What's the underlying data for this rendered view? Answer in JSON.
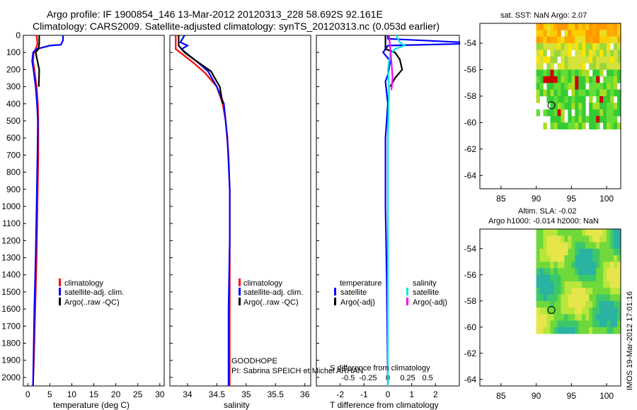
{
  "title": {
    "line1": "Argo profile: IF 1900854_146 13-Mar-2012 20120313_228 58.692S 92.161E",
    "line2": "Climatology: CARS2009. Satellite-adjusted climatology: synTS_20120313.nc (0.053d earlier)"
  },
  "colors": {
    "climatology": "#ff0000",
    "satellite": "#0000ff",
    "argo": "#000000",
    "salinity_satellite": "#00e5e5",
    "salinity_argo": "#ff00ff"
  },
  "depth_axis": {
    "ylim": [
      0,
      2050
    ],
    "ticks": [
      "0",
      "100",
      "200",
      "300",
      "400",
      "500",
      "600",
      "700",
      "800",
      "900",
      "1000",
      "1100",
      "1200",
      "1300",
      "1400",
      "1500",
      "1600",
      "1700",
      "1800",
      "1900",
      "2000"
    ]
  },
  "chart_data": [
    {
      "id": "temperature",
      "type": "line",
      "xlabel": "temperature (deg C)",
      "xlim": [
        -1,
        31
      ],
      "xticks": [
        "0",
        "5",
        "10",
        "15",
        "20",
        "25",
        "30"
      ],
      "ylim": [
        2050,
        0
      ],
      "legend": [
        "climatology",
        "satellite-adj. clim.",
        "Argo(..raw -QC)"
      ],
      "legend_placement": "lower-center",
      "series": [
        {
          "name": "climatology",
          "color_key": "climatology",
          "points": [
            [
              2.0,
              0
            ],
            [
              2.2,
              50
            ],
            [
              1.8,
              80
            ],
            [
              1.4,
              100
            ],
            [
              1.2,
              150
            ],
            [
              1.5,
              200
            ],
            [
              2.0,
              300
            ],
            [
              2.3,
              400
            ],
            [
              2.4,
              500
            ],
            [
              2.4,
              700
            ],
            [
              2.2,
              1000
            ],
            [
              2.0,
              1300
            ],
            [
              1.7,
              1600
            ],
            [
              1.4,
              1900
            ],
            [
              1.2,
              2050
            ]
          ]
        },
        {
          "name": "satellite-adj. clim.",
          "color_key": "satellite",
          "points": [
            [
              8.0,
              0
            ],
            [
              8.0,
              30
            ],
            [
              7.5,
              55
            ],
            [
              5.0,
              60
            ],
            [
              2.0,
              80
            ],
            [
              1.2,
              100
            ],
            [
              1.0,
              150
            ],
            [
              1.3,
              200
            ],
            [
              1.8,
              300
            ],
            [
              2.1,
              400
            ],
            [
              2.3,
              500
            ],
            [
              2.2,
              700
            ],
            [
              2.0,
              1000
            ],
            [
              1.8,
              1300
            ],
            [
              1.5,
              1600
            ],
            [
              1.3,
              1900
            ],
            [
              1.2,
              2050
            ]
          ]
        },
        {
          "name": "Argo(..raw -QC)",
          "color_key": "argo",
          "points": [
            [
              2.6,
              0
            ],
            [
              2.6,
              50
            ],
            [
              2.4,
              80
            ],
            [
              1.8,
              100
            ],
            [
              2.2,
              150
            ],
            [
              2.6,
              200
            ],
            [
              2.5,
              300
            ]
          ]
        }
      ]
    },
    {
      "id": "salinity",
      "type": "line",
      "xlabel": "salinity",
      "xlim": [
        33.7,
        36.1
      ],
      "xticks": [
        "34",
        "34.5",
        "35",
        "35.5",
        "36"
      ],
      "ylim": [
        2050,
        0
      ],
      "legend": [
        "climatology",
        "satellite-adj. clim.",
        "Argo(..raw -QC)"
      ],
      "legend_placement": "lower-right",
      "annotations": [
        "GOODHOPE",
        "PI: Sabrina SPEICH et Michel ARHAN"
      ],
      "series": [
        {
          "name": "climatology",
          "color_key": "climatology",
          "points": [
            [
              33.8,
              0
            ],
            [
              33.8,
              80
            ],
            [
              33.95,
              120
            ],
            [
              34.1,
              160
            ],
            [
              34.3,
              220
            ],
            [
              34.5,
              300
            ],
            [
              34.6,
              400
            ],
            [
              34.65,
              500
            ],
            [
              34.7,
              700
            ],
            [
              34.72,
              900
            ],
            [
              34.72,
              1200
            ],
            [
              34.72,
              1600
            ],
            [
              34.72,
              2050
            ]
          ]
        },
        {
          "name": "satellite-adj. clim.",
          "color_key": "satellite",
          "points": [
            [
              33.95,
              0
            ],
            [
              33.88,
              40
            ],
            [
              34.0,
              60
            ],
            [
              33.9,
              80
            ],
            [
              34.0,
              110
            ],
            [
              34.15,
              150
            ],
            [
              34.35,
              210
            ],
            [
              34.5,
              300
            ],
            [
              34.62,
              400
            ],
            [
              34.68,
              600
            ],
            [
              34.72,
              900
            ],
            [
              34.72,
              1200
            ],
            [
              34.7,
              1600
            ],
            [
              34.7,
              2050
            ]
          ]
        },
        {
          "name": "Argo(..raw -QC)",
          "color_key": "argo",
          "points": [
            [
              33.85,
              0
            ],
            [
              33.85,
              60
            ],
            [
              33.95,
              100
            ],
            [
              34.15,
              150
            ],
            [
              34.4,
              210
            ],
            [
              34.55,
              300
            ],
            [
              34.6,
              400
            ]
          ]
        }
      ]
    },
    {
      "id": "difference",
      "type": "line",
      "xlabel": "T difference from climatology",
      "xlabel_top": "S difference from climatology",
      "xlim": [
        -3,
        3
      ],
      "xticks": [
        "-2",
        "-1",
        "0",
        "1",
        "2"
      ],
      "xticks_top": [
        "-0.5",
        "-0.25",
        "0",
        "0.25",
        "0.5"
      ],
      "ylim": [
        2050,
        0
      ],
      "legend_headers": [
        "temperature",
        "salinity"
      ],
      "legend": [
        "satellite",
        "Argo(-adj)",
        "satellite",
        "Argo(-adj)"
      ],
      "legend_placement": "lower-center",
      "series": [
        {
          "name": "temperature satellite",
          "color_key": "satellite",
          "points": [
            [
              0,
              0
            ],
            [
              0,
              20
            ],
            [
              3.0,
              40
            ],
            [
              3.0,
              50
            ],
            [
              0,
              60
            ],
            [
              -0.2,
              100
            ],
            [
              0.1,
              150
            ],
            [
              0,
              230
            ],
            [
              -0.1,
              270
            ],
            [
              0,
              400
            ],
            [
              -0.1,
              600
            ],
            [
              -0.1,
              1000
            ],
            [
              -0.05,
              1400
            ],
            [
              0,
              2050
            ]
          ]
        },
        {
          "name": "temperature Argo(-adj)",
          "color_key": "argo",
          "points": [
            [
              -0.1,
              0
            ],
            [
              -0.1,
              80
            ],
            [
              0.3,
              100
            ],
            [
              0.5,
              140
            ],
            [
              0.6,
              200
            ],
            [
              0.3,
              250
            ],
            [
              0.1,
              300
            ]
          ]
        },
        {
          "name": "salinity satellite",
          "color_key": "salinity_satellite",
          "points": [
            [
              0.35,
              0
            ],
            [
              0.5,
              40
            ],
            [
              0.7,
              60
            ],
            [
              0.3,
              80
            ],
            [
              0.1,
              110
            ],
            [
              0,
              200
            ],
            [
              0.05,
              300
            ],
            [
              0,
              600
            ],
            [
              0,
              1200
            ],
            [
              0,
              1700
            ],
            [
              0,
              2050
            ]
          ]
        },
        {
          "name": "salinity Argo(-adj)",
          "color_key": "salinity_argo",
          "points": [
            [
              0.05,
              0
            ],
            [
              0.1,
              80
            ],
            [
              0.15,
              150
            ],
            [
              0.2,
              250
            ],
            [
              0.15,
              320
            ]
          ]
        }
      ]
    },
    {
      "id": "sst_map",
      "type": "heatmap",
      "title": "sat. SST: NaN Argo: 2.07",
      "xlim": [
        82,
        102
      ],
      "ylim": [
        -65,
        -52.5
      ],
      "xticks": [
        "85",
        "90",
        "95",
        "100"
      ],
      "yticks": [
        "-54",
        "-56",
        "-58",
        "-60",
        "-62",
        "-64"
      ],
      "data_extent_lon": [
        90,
        102
      ],
      "data_extent_lat": [
        -60.5,
        -52.5
      ],
      "argo_position": {
        "lon": 92.161,
        "lat": -58.692
      }
    },
    {
      "id": "sla_map",
      "type": "heatmap",
      "title": "Altim. SLA: -0.02",
      "subtitle": "Argo h1000: -0.014 h2000: NaN",
      "xlim": [
        82,
        102
      ],
      "ylim": [
        -64.5,
        -52.5
      ],
      "xticks": [
        "85",
        "90",
        "95",
        "100"
      ],
      "yticks": [
        "-54",
        "-56",
        "-58",
        "-60",
        "-62",
        "-64"
      ],
      "data_extent_lon": [
        90,
        102
      ],
      "data_extent_lat": [
        -60.2,
        -52.5
      ],
      "argo_position": {
        "lon": 92.161,
        "lat": -58.692
      }
    }
  ],
  "footer": "IMOS 19-Mar-2012 17:01:16"
}
